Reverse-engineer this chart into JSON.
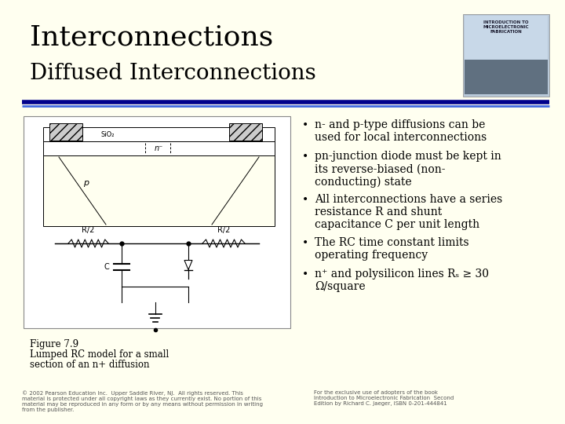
{
  "title_line1": "Interconnections",
  "title_line2": "Diffused Interconnections",
  "background_color": "#FFFFF0",
  "title_color": "#000000",
  "divider_color_dark": "#00008B",
  "divider_color_light": "#4169E1",
  "bullet_points": [
    "n- and p-type diffusions can be\nused for local interconnections",
    "pn-junction diode must be kept in\nits reverse-biased (non-\nconducting) state",
    "All interconnections have a series\nresistance R and shunt\ncapacitance C per unit length",
    "The RC time constant limits\noperating frequency",
    "n⁺ and polysilicon lines Rₛ ≥ 30\nΩ/square"
  ],
  "figure_caption_line1": "Figure 7.9",
  "figure_caption_line2": "Lumped RC model for a small",
  "figure_caption_line3": "section of an n+ diffusion",
  "copyright_left": "© 2002 Pearson Education Inc.  Upper Saddle River, NJ.  All rights reserved. This\nmaterial is protected under all copyright laws as they currently exist. No portion of this\nmaterial may be reproduced in any form or by any means without permission in writing\nfrom the publisher.",
  "copyright_right": "For the exclusive use of adopters of the book\nIntroduction to Microelectronic Fabrication  Second\nEdition by Richard C. Jaeger, ISBN 0-201-444841",
  "title_fontsize": 26,
  "subtitle_fontsize": 20,
  "bullet_fontsize": 10,
  "caption_fontsize": 8.5,
  "copyright_fontsize": 5
}
